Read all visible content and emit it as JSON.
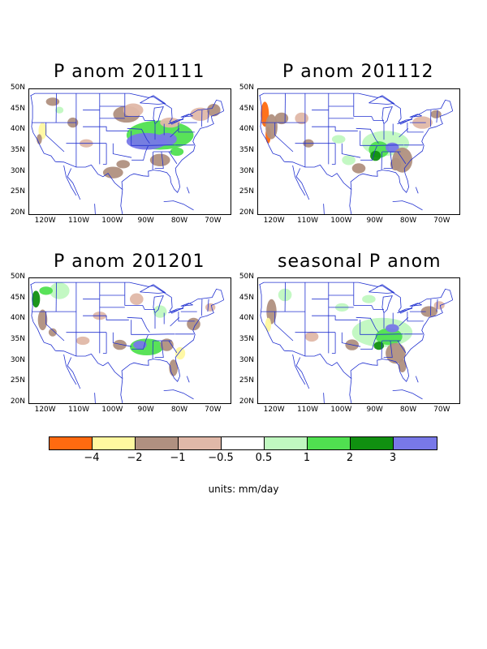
{
  "panels": [
    {
      "title": "P anom 201111"
    },
    {
      "title": "P anom 201112"
    },
    {
      "title": "P anom 201201"
    },
    {
      "title": "seasonal P anom"
    }
  ],
  "axes": {
    "lat_labels": [
      "50N",
      "45N",
      "40N",
      "35N",
      "30N",
      "25N",
      "20N"
    ],
    "lon_labels": [
      "120W",
      "110W",
      "100W",
      "90W",
      "80W",
      "70W"
    ]
  },
  "legend": {
    "colors": [
      "#ff6a10",
      "#fff8a0",
      "#b09080",
      "#e0b8a8",
      "#ffffff",
      "#c0f8c0",
      "#50e050",
      "#109010",
      "#7878e8"
    ],
    "labels": [
      "-4",
      "-2",
      "-1",
      "-0.5",
      "0.5",
      "1",
      "2",
      "3"
    ]
  },
  "units_text": "units: mm/day",
  "map_style": {
    "border_color": "#2030d0"
  }
}
